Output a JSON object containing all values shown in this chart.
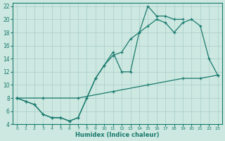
{
  "line1_x": [
    0,
    1,
    2,
    3,
    4,
    5,
    6,
    7,
    8,
    9,
    10,
    11,
    12,
    13,
    14,
    15,
    16,
    17,
    18,
    19,
    20,
    21,
    22,
    23
  ],
  "line1_y": [
    8,
    7.5,
    7,
    5.5,
    5,
    5,
    4.5,
    5,
    8,
    11,
    13,
    15,
    12,
    12,
    18,
    22,
    20.5,
    20.5,
    20,
    20,
    null,
    null,
    null,
    null
  ],
  "line2_x": [
    0,
    1,
    2,
    3,
    4,
    5,
    6,
    7,
    8,
    9,
    10,
    11,
    12,
    13,
    14,
    15,
    16,
    17,
    18,
    19,
    20,
    21,
    22,
    23
  ],
  "line2_y": [
    8,
    7.5,
    7,
    5.5,
    5,
    5,
    4.5,
    5,
    8,
    11,
    13,
    14.5,
    15,
    17,
    18,
    19,
    20,
    19.5,
    18,
    19.5,
    20,
    19,
    14,
    11.5
  ],
  "line3_x": [
    0,
    3,
    7,
    11,
    15,
    19,
    21,
    23
  ],
  "line3_y": [
    8,
    8,
    8,
    9,
    10,
    11,
    11,
    11.5
  ],
  "line_color": "#1a7a6e",
  "bg_color": "#cce8e0",
  "grid_color": "#aacccc",
  "xlabel": "Humidex (Indice chaleur)",
  "xlim": [
    -0.5,
    23.5
  ],
  "ylim": [
    4,
    22.5
  ],
  "xticks": [
    0,
    1,
    2,
    3,
    4,
    5,
    6,
    7,
    8,
    9,
    10,
    11,
    12,
    13,
    14,
    15,
    16,
    17,
    18,
    19,
    20,
    21,
    22,
    23
  ],
  "yticks": [
    4,
    6,
    8,
    10,
    12,
    14,
    16,
    18,
    20,
    22
  ]
}
